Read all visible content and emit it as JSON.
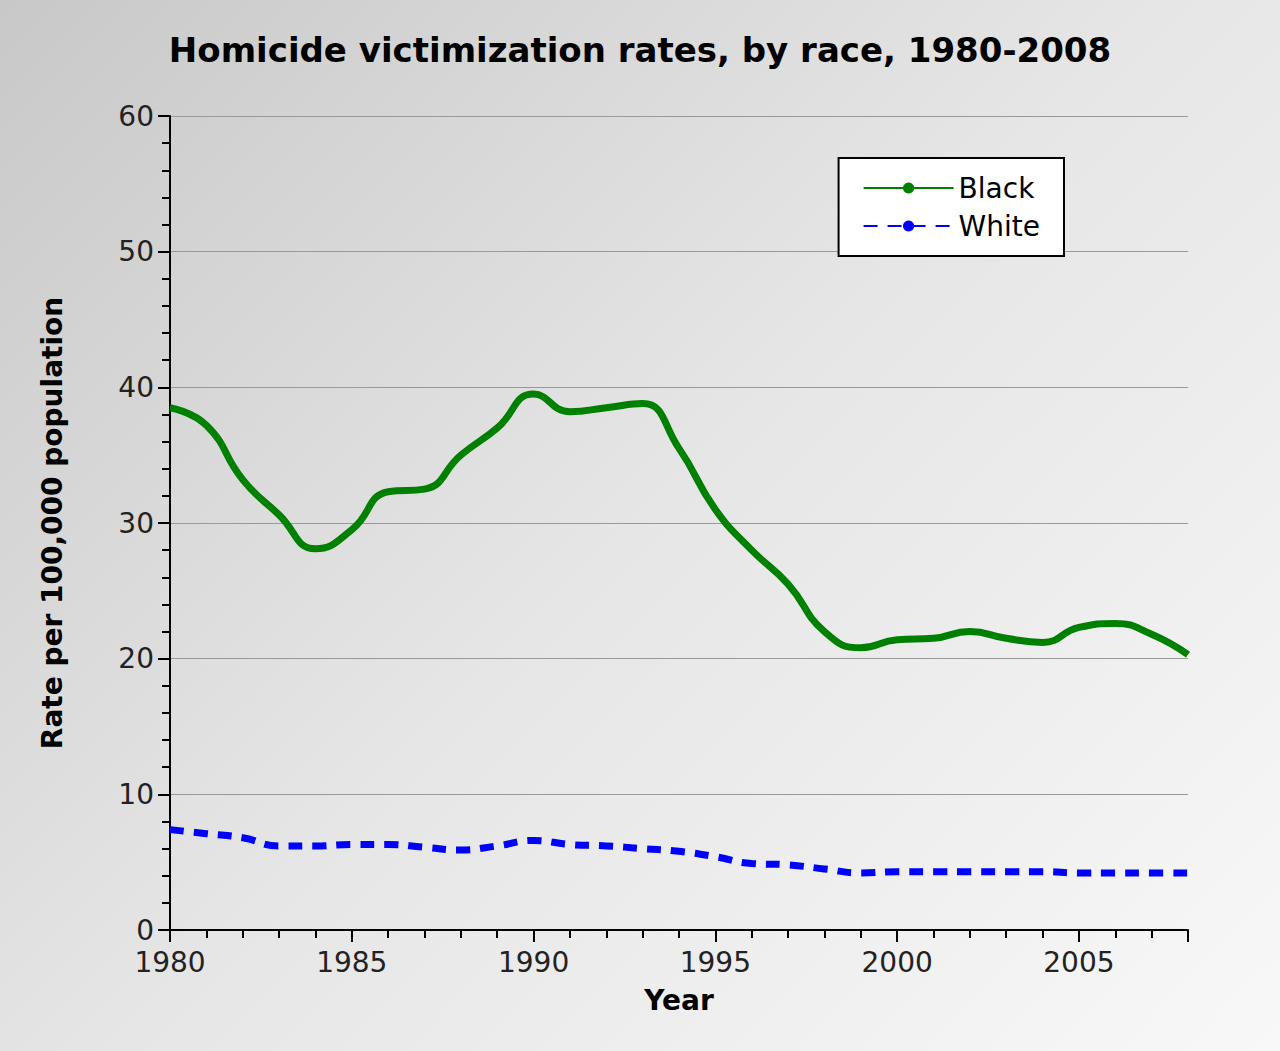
{
  "chart_data": {
    "type": "line",
    "title": "Homicide victimization rates, by race, 1980-2008",
    "x_label": "Year",
    "y_label": "Rate per 100,000 population",
    "x": [
      1980,
      1981,
      1982,
      1983,
      1984,
      1985,
      1986,
      1987,
      1988,
      1989,
      1990,
      1991,
      1992,
      1993,
      1994,
      1995,
      1996,
      1997,
      1998,
      1999,
      2000,
      2001,
      2002,
      2003,
      2004,
      2005,
      2006,
      2007,
      2008
    ],
    "series": [
      {
        "name": "Black",
        "color": "#008000",
        "line_style": "solid",
        "values": [
          38.5,
          37.2,
          33.2,
          30.6,
          28.1,
          29.5,
          32.3,
          32.5,
          35.0,
          37.0,
          39.5,
          38.2,
          38.5,
          38.8,
          35.5,
          31.0,
          28.0,
          25.5,
          22.0,
          20.8,
          21.4,
          21.5,
          22.0,
          21.5,
          21.2,
          22.3,
          22.6,
          21.8,
          20.3
        ]
      },
      {
        "name": "White",
        "color": "#0000ff",
        "line_style": "dashed",
        "values": [
          7.4,
          7.1,
          6.8,
          6.2,
          6.2,
          6.3,
          6.3,
          6.1,
          5.9,
          6.2,
          6.6,
          6.3,
          6.2,
          6.0,
          5.8,
          5.4,
          4.9,
          4.8,
          4.5,
          4.2,
          4.3,
          4.3,
          4.3,
          4.3,
          4.3,
          4.2,
          4.2,
          4.2,
          4.2
        ]
      }
    ],
    "xlim": [
      1980,
      2008
    ],
    "xticks": [
      1980,
      1985,
      1990,
      1995,
      2000,
      2005
    ],
    "ylim": [
      0,
      60
    ],
    "yticks": [
      0,
      10,
      20,
      30,
      40,
      50,
      60
    ],
    "grid": true,
    "legend": "upper right"
  }
}
